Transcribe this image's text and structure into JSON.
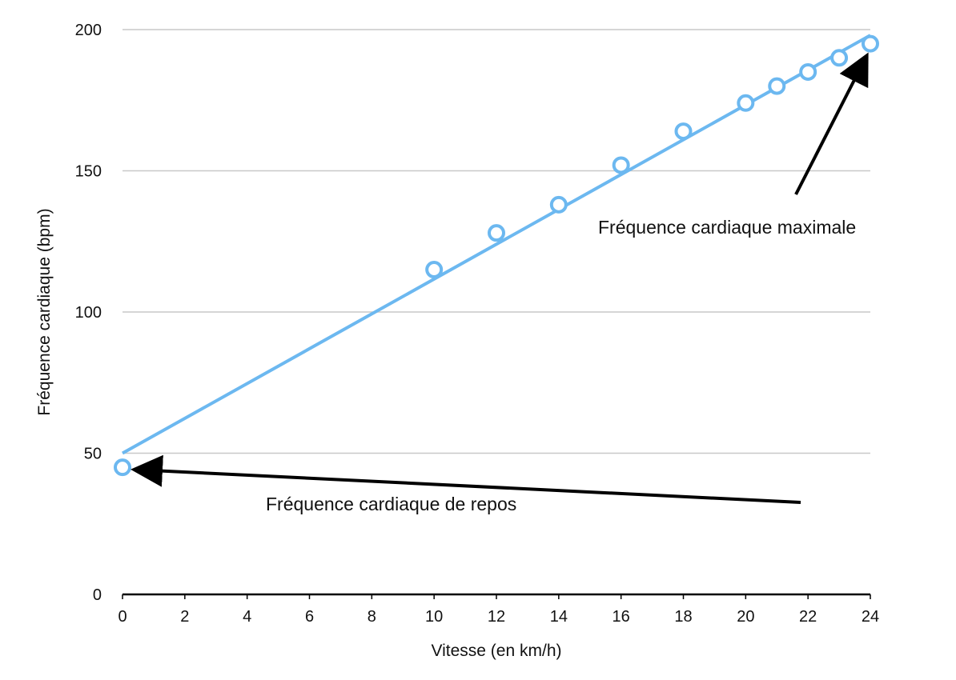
{
  "chart_data": {
    "type": "scatter",
    "title": "",
    "xlabel": "Vitesse (en km/h)",
    "ylabel": "Fréquence cardiaque (bpm)",
    "xlim": [
      0,
      24
    ],
    "ylim": [
      0,
      200
    ],
    "x_ticks": [
      0,
      2,
      4,
      6,
      8,
      10,
      12,
      14,
      16,
      18,
      20,
      22,
      24
    ],
    "y_ticks": [
      0,
      50,
      100,
      150,
      200
    ],
    "grid": "horizontal",
    "legend": "none",
    "series": [
      {
        "type": "scatter",
        "color": "#6cb8f0",
        "marker": "open-circle",
        "points": [
          {
            "x": 0,
            "y": 45
          },
          {
            "x": 10,
            "y": 115
          },
          {
            "x": 12,
            "y": 128
          },
          {
            "x": 14,
            "y": 138
          },
          {
            "x": 16,
            "y": 152
          },
          {
            "x": 18,
            "y": 164
          },
          {
            "x": 20,
            "y": 174
          },
          {
            "x": 21,
            "y": 180
          },
          {
            "x": 22,
            "y": 185
          },
          {
            "x": 23,
            "y": 190
          },
          {
            "x": 24,
            "y": 195
          }
        ]
      },
      {
        "type": "line",
        "color": "#6cb8f0",
        "points": [
          {
            "x": 0,
            "y": 50
          },
          {
            "x": 24,
            "y": 198
          }
        ]
      }
    ],
    "annotations": [
      {
        "text": "Fréquence cardiaque de repos",
        "target": {
          "x": 0,
          "y": 45
        }
      },
      {
        "text": "Fréquence cardiaque maximale",
        "target": {
          "x": 24,
          "y": 195
        }
      }
    ]
  }
}
